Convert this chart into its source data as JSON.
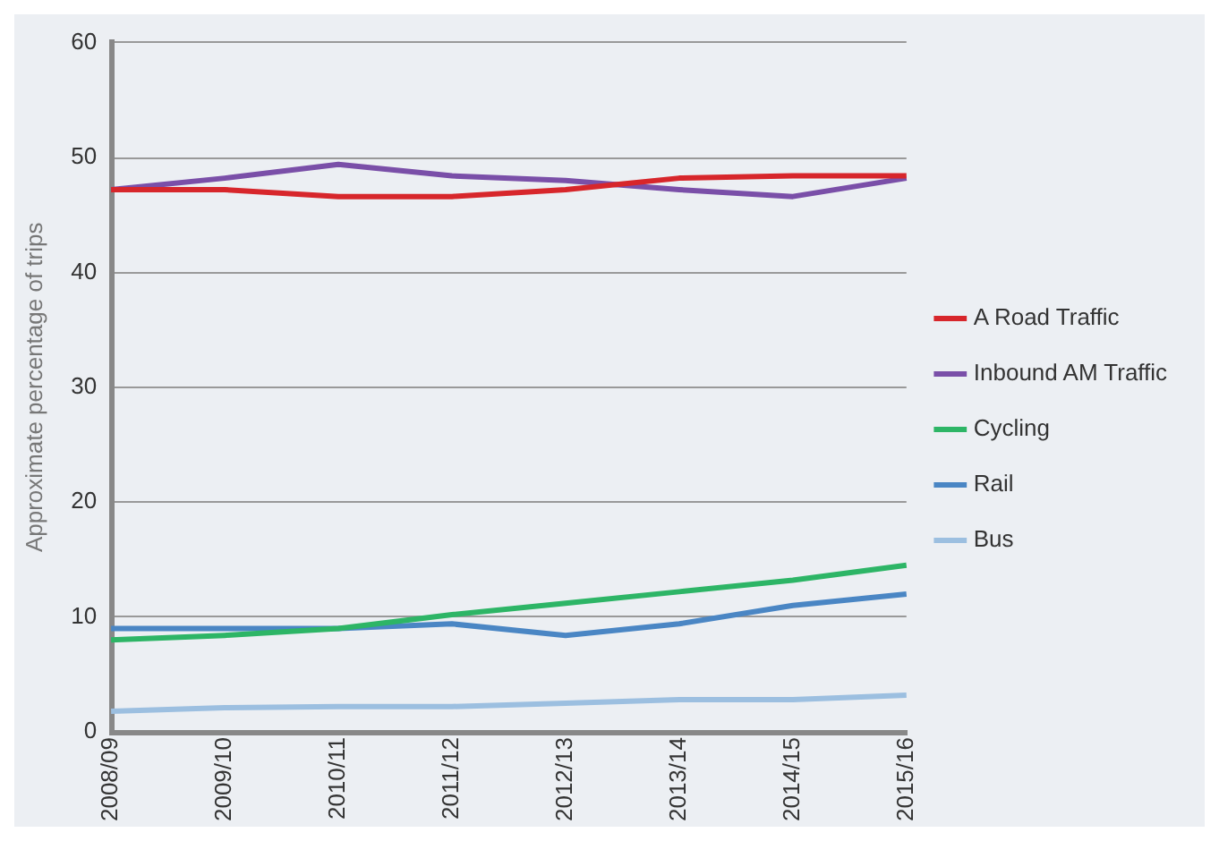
{
  "chart_data": {
    "type": "line",
    "ylabel": "Approximate percentage of trips",
    "categories": [
      "2008/09",
      "2009/10",
      "2010/11",
      "2011/12",
      "2012/13",
      "2013/14",
      "2014/15",
      "2015/16"
    ],
    "series": [
      {
        "name": "A Road Traffic",
        "color": "#d7262b",
        "values": [
          47.2,
          47.2,
          46.6,
          46.6,
          47.2,
          48.2,
          48.4,
          48.4
        ]
      },
      {
        "name": "Inbound AM Traffic",
        "color": "#7a4fa8",
        "values": [
          47.2,
          48.2,
          49.4,
          48.4,
          48.0,
          47.2,
          46.6,
          48.2
        ]
      },
      {
        "name": "Cycling",
        "color": "#2db566",
        "values": [
          8.0,
          8.4,
          9.0,
          10.2,
          11.2,
          12.2,
          13.2,
          14.5
        ]
      },
      {
        "name": "Rail",
        "color": "#4a86c4",
        "values": [
          9.0,
          9.0,
          9.0,
          9.4,
          8.4,
          9.4,
          11.0,
          12.0
        ]
      },
      {
        "name": "Bus",
        "color": "#9cbfe0",
        "values": [
          1.8,
          2.1,
          2.2,
          2.2,
          2.5,
          2.8,
          2.8,
          3.2
        ]
      }
    ],
    "ylim": [
      0,
      60
    ],
    "yticks": [
      0,
      10,
      20,
      30,
      40,
      50,
      60
    ],
    "grid": "y",
    "legend": "right",
    "marker": "none",
    "line_style": "solid"
  }
}
